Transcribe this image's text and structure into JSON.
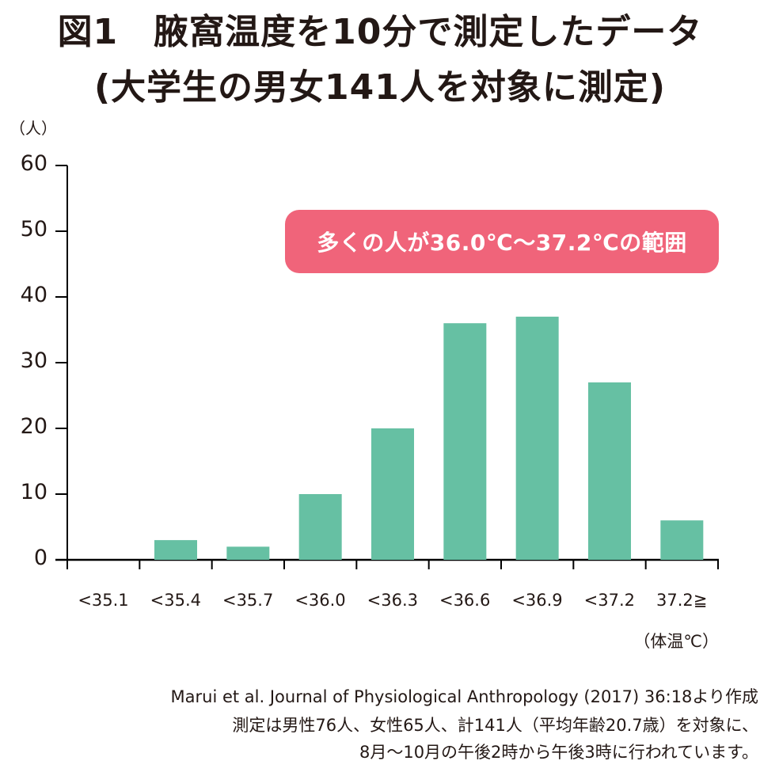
{
  "title": {
    "line1": "図1　腋窩温度を10分で測定したデータ",
    "line2": "(大学生の男女141人を対象に測定)"
  },
  "y_axis": {
    "unit_label": "（人）",
    "ticks": [
      "60",
      "50",
      "40",
      "30",
      "20",
      "10",
      "0"
    ]
  },
  "x_axis": {
    "unit_label": "（体温℃）",
    "ticks": [
      "<35.1",
      "<35.4",
      "<35.7",
      "<36.0",
      "<36.3",
      "<36.6",
      "<36.9",
      "<37.2",
      "37.2≧"
    ]
  },
  "callout": {
    "text": "多くの人が36.0℃〜37.2℃の範囲",
    "color": "#f0647a"
  },
  "footer": {
    "source": "Marui et al. Journal of Physiological Anthropology (2017) 36:18より作成",
    "note1": "測定は男性76人、女性65人、計141人（平均年齢20.7歳）を対象に、",
    "note2": "8月〜10月の午後2時から午後3時に行われています。"
  },
  "colors": {
    "bar": "#66c0a3",
    "axis": "#000000",
    "text": "#231815"
  },
  "chart_data": {
    "type": "bar",
    "title": "図1　腋窩温度を10分で測定したデータ (大学生の男女141人を対象に測定)",
    "xlabel": "体温℃",
    "ylabel": "人",
    "categories": [
      "<35.1",
      "<35.4",
      "<35.7",
      "<36.0",
      "<36.3",
      "<36.6",
      "<36.9",
      "<37.2",
      "37.2≧"
    ],
    "values": [
      0,
      3,
      2,
      10,
      20,
      36,
      37,
      27,
      6
    ],
    "ylim": [
      0,
      60
    ],
    "yticks": [
      0,
      10,
      20,
      30,
      40,
      50,
      60
    ],
    "grid": false,
    "legend": null,
    "annotations": [
      "多くの人が36.0℃〜37.2℃の範囲"
    ]
  }
}
